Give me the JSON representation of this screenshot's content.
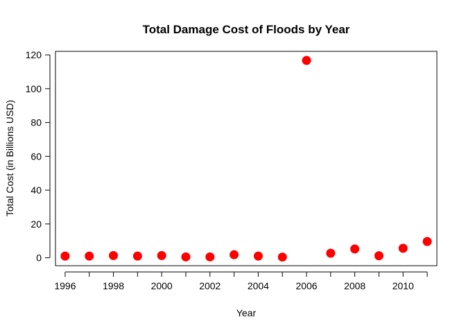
{
  "chart_data": {
    "type": "scatter",
    "title": "Total Damage Cost of Floods by Year",
    "xlabel": "Year",
    "ylabel": "Total Cost (in Billions USD)",
    "xlim": [
      1995.6,
      2011.4
    ],
    "ylim": [
      -4.7,
      122.1
    ],
    "x_ticks": [
      1996,
      1998,
      2000,
      2002,
      2004,
      2006,
      2008,
      2010
    ],
    "x_tick_marks": [
      1996,
      1997,
      1998,
      1999,
      2000,
      2001,
      2002,
      2003,
      2004,
      2005,
      2006,
      2007,
      2008,
      2009,
      2010,
      2011
    ],
    "y_ticks": [
      0,
      20,
      40,
      60,
      80,
      100,
      120
    ],
    "grid": false,
    "legend": "none",
    "point_color": "#ff0000",
    "series": [
      {
        "x": [
          1996,
          1997,
          1998,
          1999,
          2000,
          2001,
          2002,
          2003,
          2004,
          2005,
          2006,
          2007,
          2008,
          2009,
          2010,
          2011
        ],
        "y": [
          1.0,
          1.0,
          1.3,
          1.0,
          1.3,
          0.5,
          0.5,
          1.8,
          1.0,
          0.4,
          116.7,
          2.7,
          5.2,
          1.2,
          5.6,
          9.6
        ]
      }
    ]
  }
}
